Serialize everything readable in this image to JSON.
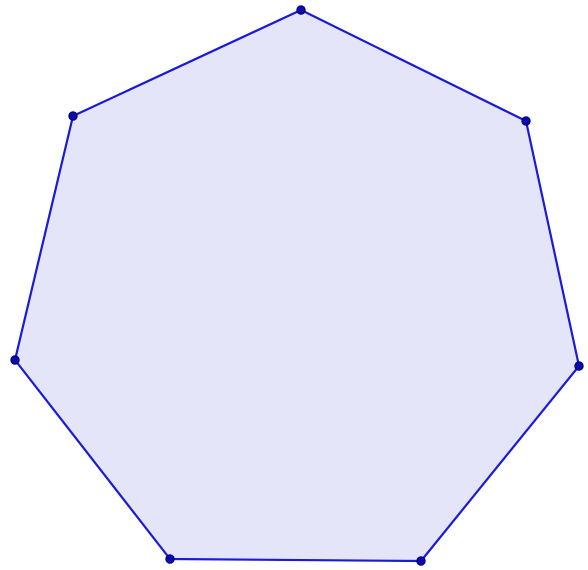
{
  "diagram": {
    "shape": "heptagon",
    "vertex_count": 7,
    "colors": {
      "fill": "#e5e5fa",
      "edge": "#1a1ad9",
      "vertex": "#0a0ab0",
      "vertex_outline": "#000066",
      "background": "#ffffff"
    }
  }
}
